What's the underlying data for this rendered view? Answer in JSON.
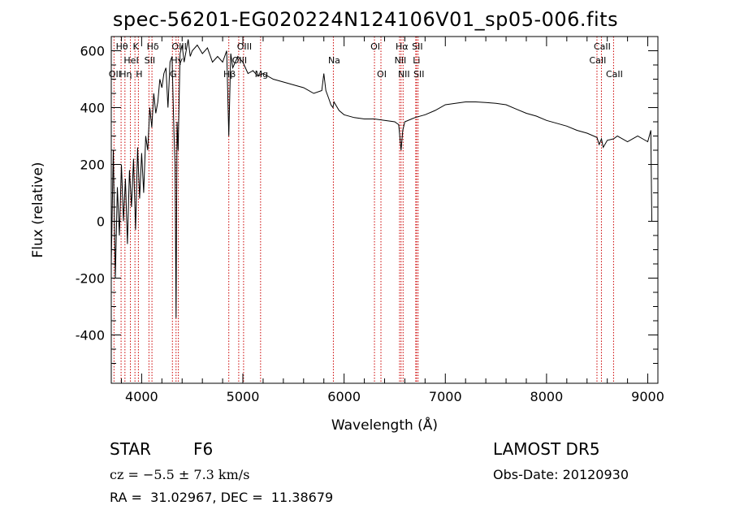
{
  "title": "spec-56201-EG020224N124106V01_sp05-006.fits",
  "footer": {
    "object_type": "STAR",
    "subclass": "F6",
    "survey": "LAMOST DR5",
    "cz": "cz = −5.5 ± 7.3 km/s",
    "obs_date": "Obs-Date: 20120930",
    "coords": "RA =  31.02967, DEC =  11.38679"
  },
  "chart_data": {
    "type": "line",
    "xlabel": "Wavelength (Å)",
    "ylabel": "Flux (relative)",
    "xlim": [
      3700,
      9100
    ],
    "ylim": [
      -570,
      650
    ],
    "xticks": [
      4000,
      5000,
      6000,
      7000,
      8000,
      9000
    ],
    "yticks": [
      -400,
      -200,
      0,
      200,
      400,
      600
    ],
    "line_color": "#000000",
    "marker_color": "#cc0000",
    "series": [
      {
        "x": [
          3700,
          3720,
          3740,
          3760,
          3780,
          3800,
          3820,
          3840,
          3860,
          3880,
          3900,
          3920,
          3940,
          3960,
          3980,
          4000,
          4020,
          4040,
          4060,
          4080,
          4100,
          4120,
          4140,
          4160,
          4180,
          4200,
          4220,
          4240,
          4260,
          4280,
          4300,
          4320,
          4330,
          4340,
          4350,
          4360,
          4380,
          4400,
          4420,
          4440,
          4460,
          4480,
          4500,
          4550,
          4600,
          4650,
          4700,
          4750,
          4800,
          4840,
          4861,
          4880,
          4900,
          4950,
          5000,
          5050,
          5100,
          5150,
          5200,
          5300,
          5400,
          5500,
          5600,
          5700,
          5780,
          5800,
          5820,
          5850,
          5870,
          5890,
          5900,
          5950,
          6000,
          6100,
          6200,
          6300,
          6400,
          6500,
          6540,
          6563,
          6580,
          6600,
          6700,
          6800,
          6900,
          7000,
          7100,
          7200,
          7300,
          7400,
          7500,
          7600,
          7700,
          7800,
          7900,
          8000,
          8100,
          8200,
          8300,
          8400,
          8498,
          8520,
          8542,
          8560,
          8600,
          8662,
          8700,
          8800,
          8900,
          8950,
          9000,
          9030,
          9040
        ],
        "y": [
          -150,
          250,
          -200,
          120,
          -50,
          200,
          0,
          150,
          -80,
          180,
          50,
          220,
          -30,
          260,
          80,
          240,
          100,
          300,
          250,
          400,
          330,
          450,
          380,
          420,
          500,
          470,
          520,
          540,
          400,
          560,
          580,
          300,
          200,
          -340,
          350,
          250,
          590,
          620,
          560,
          600,
          640,
          580,
          600,
          620,
          590,
          610,
          560,
          580,
          560,
          600,
          300,
          590,
          540,
          580,
          560,
          520,
          530,
          510,
          520,
          500,
          490,
          480,
          470,
          450,
          460,
          520,
          460,
          430,
          410,
          400,
          420,
          390,
          375,
          365,
          360,
          360,
          355,
          350,
          340,
          250,
          320,
          350,
          365,
          375,
          390,
          410,
          415,
          420,
          420,
          418,
          415,
          410,
          395,
          380,
          370,
          355,
          345,
          335,
          320,
          310,
          295,
          270,
          290,
          260,
          285,
          290,
          300,
          280,
          300,
          290,
          280,
          320,
          0
        ]
      }
    ],
    "line_markers": [
      {
        "label": "OII",
        "wavelength": 3727,
        "row": 2
      },
      {
        "label": "Hθ",
        "wavelength": 3797,
        "row": 0
      },
      {
        "label": "Hη",
        "wavelength": 3835,
        "row": 2
      },
      {
        "label": "HeI",
        "wavelength": 3889,
        "row": 1
      },
      {
        "label": "K",
        "wavelength": 3934,
        "row": 0
      },
      {
        "label": "H",
        "wavelength": 3968,
        "row": 2
      },
      {
        "label": "SII",
        "wavelength": 4072,
        "row": 1
      },
      {
        "label": "Hδ",
        "wavelength": 4102,
        "row": 0
      },
      {
        "label": "G",
        "wavelength": 4304,
        "row": 2
      },
      {
        "label": "Hγ",
        "wavelength": 4340,
        "row": 1
      },
      {
        "label": "OIII",
        "wavelength": 4363,
        "row": 0
      },
      {
        "label": "Hβ",
        "wavelength": 4861,
        "row": 2
      },
      {
        "label": "OIII",
        "wavelength": 4959,
        "row": 1
      },
      {
        "label": "OIII",
        "wavelength": 5007,
        "row": 0
      },
      {
        "label": "Mg",
        "wavelength": 5175,
        "row": 2
      },
      {
        "label": "Na",
        "wavelength": 5894,
        "row": 1
      },
      {
        "label": "OI",
        "wavelength": 6300,
        "row": 0
      },
      {
        "label": "OI",
        "wavelength": 6364,
        "row": 2
      },
      {
        "label": "NII",
        "wavelength": 6548,
        "row": 1
      },
      {
        "label": "Hα",
        "wavelength": 6563,
        "row": 0
      },
      {
        "label": "NII",
        "wavelength": 6583,
        "row": 2
      },
      {
        "label": "Li",
        "wavelength": 6708,
        "row": 1
      },
      {
        "label": "SII",
        "wavelength": 6716,
        "row": 0
      },
      {
        "label": "SII",
        "wavelength": 6731,
        "row": 2
      },
      {
        "label": "CaII",
        "wavelength": 8498,
        "row": 1
      },
      {
        "label": "CaII",
        "wavelength": 8542,
        "row": 0
      },
      {
        "label": "CaII",
        "wavelength": 8662,
        "row": 2
      }
    ]
  }
}
